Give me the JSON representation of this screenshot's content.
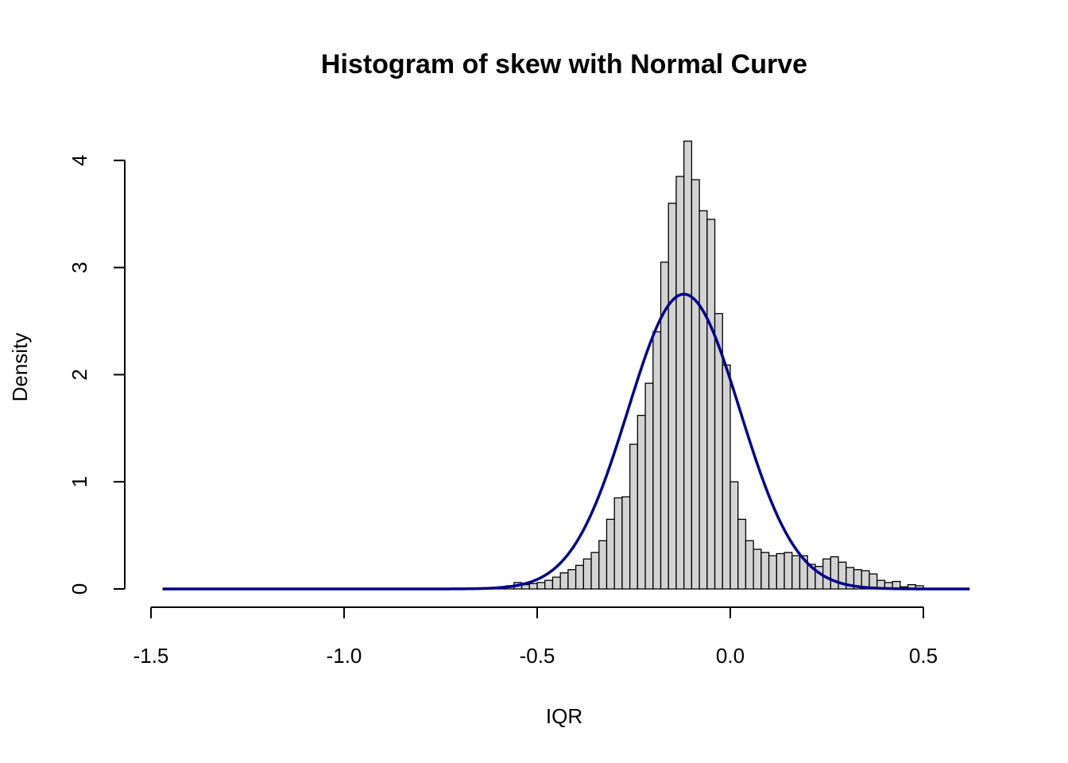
{
  "chart_data": {
    "type": "bar",
    "title": "Histogram of skew with Normal Curve",
    "xlabel": "IQR",
    "ylabel": "Density",
    "xlim": [
      -1.5,
      0.63
    ],
    "ylim": [
      0,
      4.3
    ],
    "x_ticks": [
      {
        "value": -1.5,
        "label": "-1.5"
      },
      {
        "value": -1.0,
        "label": "-1.0"
      },
      {
        "value": -0.5,
        "label": "-0.5"
      },
      {
        "value": 0.0,
        "label": "0.0"
      },
      {
        "value": 0.5,
        "label": "0.5"
      }
    ],
    "y_ticks": [
      {
        "value": 0,
        "label": "0"
      },
      {
        "value": 1,
        "label": "1"
      },
      {
        "value": 2,
        "label": "2"
      },
      {
        "value": 3,
        "label": "3"
      },
      {
        "value": 4,
        "label": "4"
      }
    ],
    "bin_width": 0.02,
    "bins_start": [
      -0.68,
      -0.66,
      -0.64,
      -0.62,
      -0.6,
      -0.58,
      -0.56,
      -0.54,
      -0.52,
      -0.5,
      -0.48,
      -0.46,
      -0.44,
      -0.42,
      -0.4,
      -0.38,
      -0.36,
      -0.34,
      -0.32,
      -0.3,
      -0.28,
      -0.26,
      -0.24,
      -0.22,
      -0.2,
      -0.18,
      -0.16,
      -0.14,
      -0.12,
      -0.1,
      -0.08,
      -0.06,
      -0.04,
      -0.02,
      0.0,
      0.02,
      0.04,
      0.06,
      0.08,
      0.1,
      0.12,
      0.14,
      0.16,
      0.18,
      0.2,
      0.22,
      0.24,
      0.26,
      0.28,
      0.3,
      0.32,
      0.34,
      0.36,
      0.38,
      0.4,
      0.42,
      0.44,
      0.46,
      0.48
    ],
    "density": [
      0.01,
      0,
      0,
      0.01,
      0.02,
      0.03,
      0.06,
      0.04,
      0.05,
      0.06,
      0.08,
      0.11,
      0.15,
      0.18,
      0.22,
      0.28,
      0.34,
      0.45,
      0.65,
      0.85,
      0.86,
      1.35,
      1.62,
      1.92,
      2.4,
      3.05,
      3.6,
      3.85,
      4.18,
      3.82,
      3.53,
      3.45,
      2.57,
      2.09,
      1.0,
      0.65,
      0.45,
      0.37,
      0.34,
      0.31,
      0.33,
      0.34,
      0.31,
      0.31,
      0.23,
      0.21,
      0.28,
      0.3,
      0.25,
      0.2,
      0.18,
      0.17,
      0.14,
      0.08,
      0.06,
      0.07,
      0.02,
      0.04,
      0.03
    ],
    "bar_color": "#d3d3d3",
    "normal_curve": {
      "mean": -0.12,
      "sd": 0.145,
      "x_range": [
        -1.47,
        0.62
      ],
      "color": "#00008b"
    },
    "grid": false,
    "legend": "none"
  }
}
